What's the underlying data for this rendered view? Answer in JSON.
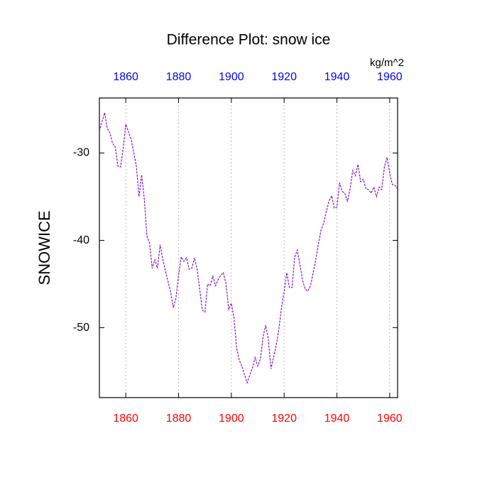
{
  "chart_data": {
    "type": "line",
    "title": "Difference Plot: snow ice",
    "ylabel": "SNOWICE",
    "units": "kg/m^2",
    "x": [
      1850,
      1851,
      1852,
      1853,
      1854,
      1855,
      1856,
      1857,
      1858,
      1859,
      1860,
      1861,
      1862,
      1863,
      1864,
      1865,
      1866,
      1867,
      1868,
      1869,
      1870,
      1871,
      1872,
      1873,
      1874,
      1875,
      1876,
      1877,
      1878,
      1879,
      1880,
      1881,
      1882,
      1883,
      1884,
      1885,
      1886,
      1887,
      1888,
      1889,
      1890,
      1891,
      1892,
      1893,
      1894,
      1895,
      1896,
      1897,
      1898,
      1899,
      1900,
      1901,
      1902,
      1903,
      1904,
      1905,
      1906,
      1907,
      1908,
      1909,
      1910,
      1911,
      1912,
      1913,
      1914,
      1915,
      1916,
      1917,
      1918,
      1919,
      1920,
      1921,
      1922,
      1923,
      1924,
      1925,
      1926,
      1927,
      1928,
      1929,
      1930,
      1931,
      1932,
      1933,
      1934,
      1935,
      1936,
      1937,
      1938,
      1939,
      1940,
      1941,
      1942,
      1943,
      1944,
      1945,
      1946,
      1947,
      1948,
      1949,
      1950,
      1951,
      1952,
      1953,
      1954,
      1955,
      1956,
      1957,
      1958,
      1959,
      1960,
      1961,
      1962,
      1963
    ],
    "series": [
      {
        "name": "SNOWICE",
        "color": "#7a00c4",
        "dashed": true,
        "values": [
          -27.5,
          -26.4,
          -25.4,
          -27.2,
          -27.7,
          -28.9,
          -29.3,
          -31.5,
          -31.6,
          -29.5,
          -26.7,
          -27.6,
          -28.4,
          -29.9,
          -31.5,
          -35,
          -32.5,
          -35.2,
          -39.5,
          -40.3,
          -43.2,
          -42.2,
          -43.2,
          -40.5,
          -42.1,
          -43.5,
          -44.7,
          -45.9,
          -47.7,
          -46.6,
          -44,
          -41.9,
          -42.4,
          -42,
          -43.3,
          -43.2,
          -42,
          -43.2,
          -45.6,
          -48,
          -48.2,
          -45,
          -45.2,
          -44.1,
          -45.2,
          -44.5,
          -44,
          -43.7,
          -45,
          -47.9,
          -47.2,
          -48.9,
          -52.3,
          -53.7,
          -54.4,
          -55.4,
          -56.3,
          -55.4,
          -54.6,
          -53.4,
          -54.4,
          -53.6,
          -51.1,
          -49.7,
          -51.3,
          -54.7,
          -53.4,
          -52,
          -50.2,
          -47.7,
          -45.9,
          -43.7,
          -45.4,
          -45.4,
          -41.9,
          -41.1,
          -42.8,
          -44.6,
          -45.6,
          -45.8,
          -45.2,
          -43.7,
          -42.2,
          -40.4,
          -38.8,
          -38,
          -36.7,
          -35.5,
          -34.9,
          -36.3,
          -36.2,
          -33.4,
          -34.4,
          -34.6,
          -35.5,
          -34.1,
          -32,
          -32.6,
          -31.3,
          -33.3,
          -33,
          -34.1,
          -34.2,
          -34.6,
          -33.9,
          -35,
          -33.9,
          -34.2,
          -31.6,
          -30.5,
          -32.3,
          -33.6,
          -33.7,
          -34.1
        ]
      }
    ],
    "xlim": [
      1850,
      1963
    ],
    "xticks": [
      1860,
      1880,
      1900,
      1920,
      1940,
      1960
    ],
    "ylim": [
      -58,
      -23.7
    ],
    "yticks": [
      -50,
      -40,
      -30
    ],
    "grid": "x",
    "top_axis_color": "#0000ff",
    "bottom_axis_color": "#ff0000"
  }
}
